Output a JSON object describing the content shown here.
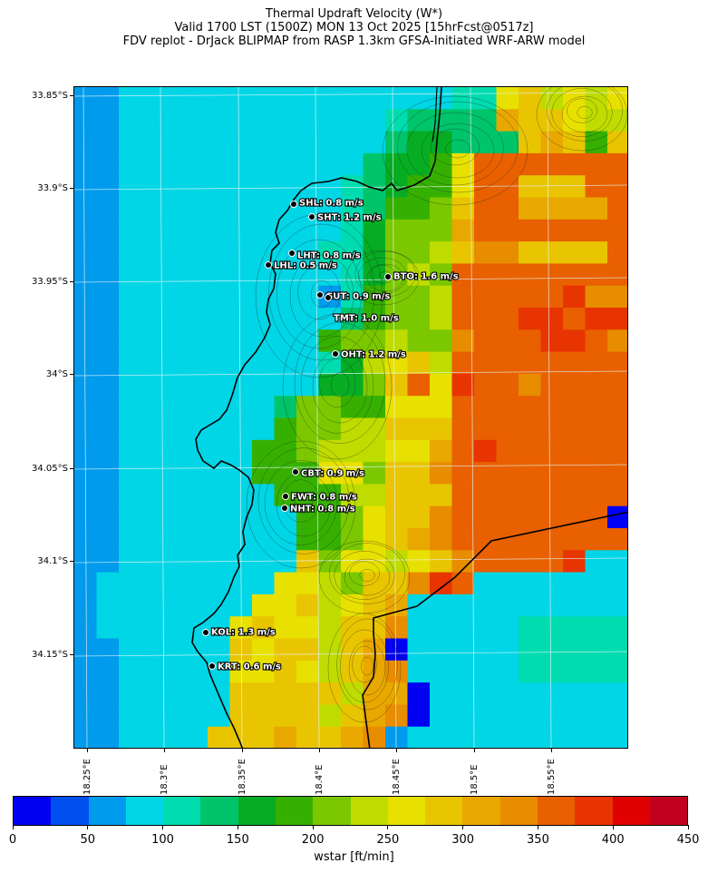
{
  "title": {
    "line1": "Thermal Updraft Velocity (W*)",
    "line2": "Valid 1700 LST (1500Z) MON 13 Oct 2025 [15hrFcst@0517z]",
    "line3": "FDV replot - DrJack BLIPMAP from RASP 1.3km GFSA-Initiated WRF-ARW model"
  },
  "latitude_labels": [
    "33.85°S",
    "33.9°S",
    "33.95°S",
    "34°S",
    "34.05°S",
    "34.1°S",
    "34.15°S"
  ],
  "longitude_labels": [
    "18.25°E",
    "18.3°E",
    "18.35°E",
    "18.4°E",
    "18.45°E",
    "18.5°E",
    "18.55°E"
  ],
  "stations": [
    {
      "code": "SHL",
      "label": "SHL: 0.8 m/s",
      "value_ms": 0.8
    },
    {
      "code": "SHT",
      "label": "SHT: 1.2 m/s",
      "value_ms": 1.2
    },
    {
      "code": "LHT",
      "label": "LHT: 0.8 m/s",
      "value_ms": 0.8
    },
    {
      "code": "LHL",
      "label": "LHL: 0.5 m/s",
      "value_ms": 0.5
    },
    {
      "code": "BTO",
      "label": "BTO: 1.6 m/s",
      "value_ms": 1.6
    },
    {
      "code": "GUT",
      "label": "GUT: 0.9 m/s",
      "value_ms": 0.9
    },
    {
      "code": "TMT",
      "label": "TMT: 1.0 m/s",
      "value_ms": 1.0
    },
    {
      "code": "OHT",
      "label": "OHT: 1.2 m/s",
      "value_ms": 1.2
    },
    {
      "code": "CBT",
      "label": "CBT: 0.9 m/s",
      "value_ms": 0.9
    },
    {
      "code": "FWT",
      "label": "FWT: 0.8 m/s",
      "value_ms": 0.8
    },
    {
      "code": "NHT",
      "label": "NHT: 0.8 m/s",
      "value_ms": 0.8
    },
    {
      "code": "KOL",
      "label": "KOL: 1.3 m/s",
      "value_ms": 1.3
    },
    {
      "code": "KRT",
      "label": "KRT: 0.6 m/s",
      "value_ms": 0.6
    }
  ],
  "colorbar": {
    "label": "wstar [ft/min]",
    "min": 0,
    "max": 450,
    "tick_labels": [
      "0",
      "50",
      "100",
      "150",
      "200",
      "250",
      "300",
      "350",
      "400",
      "450"
    ],
    "colors": [
      "#0000f2",
      "#0050ef",
      "#009bec",
      "#00d6e6",
      "#00dcb0",
      "#00c46a",
      "#06ad23",
      "#36b000",
      "#7cc800",
      "#bfdc00",
      "#e8e000",
      "#e8c500",
      "#e8a800",
      "#e88c00",
      "#e86000",
      "#e83400",
      "#e00000",
      "#c0001c"
    ]
  }
}
